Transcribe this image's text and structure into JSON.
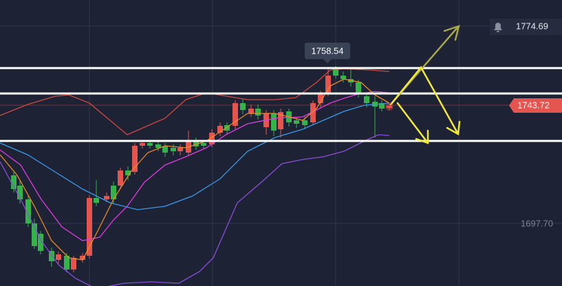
{
  "price_labels": {
    "alert": "1774.69",
    "tooltip": "1758.54",
    "current": "1743.72",
    "grid_level": "1697.70"
  }
}
